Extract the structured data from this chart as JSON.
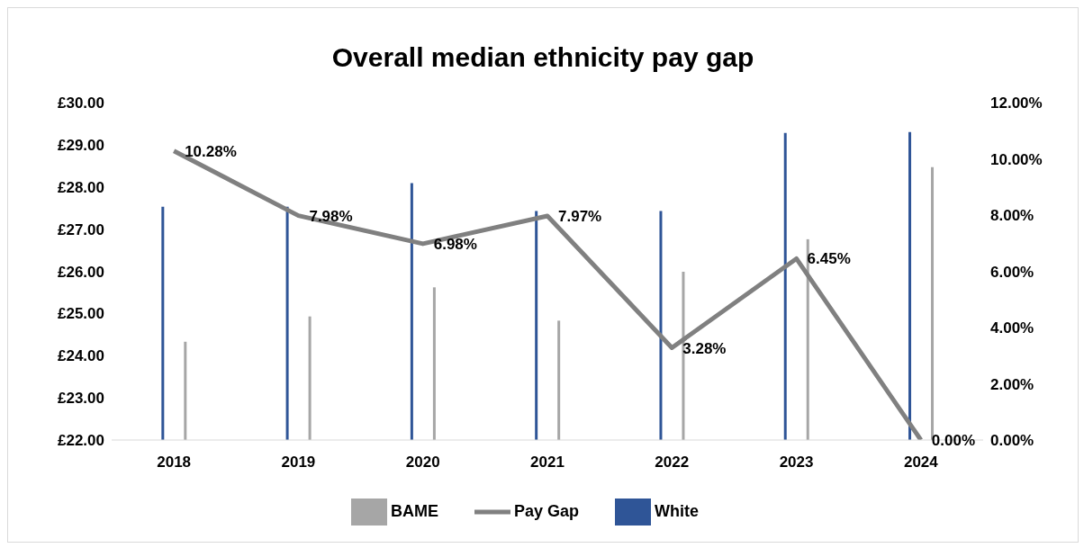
{
  "chart_data": {
    "type": "bar",
    "title": "Overall median ethnicity pay gap",
    "categories": [
      "2018",
      "2019",
      "2020",
      "2021",
      "2022",
      "2023",
      "2024"
    ],
    "series": [
      {
        "name": "White",
        "color": "#2f5597",
        "values": [
          27.53,
          27.53,
          28.09,
          27.43,
          27.43,
          29.28,
          29.3
        ]
      },
      {
        "name": "BAME",
        "color": "#a6a6a6",
        "values": [
          24.33,
          24.93,
          25.62,
          24.83,
          25.99,
          26.76,
          28.47
        ]
      },
      {
        "name": "Pay Gap",
        "type": "line",
        "axis": "y2",
        "color": "#808080",
        "values": [
          10.28,
          7.98,
          6.98,
          7.97,
          3.28,
          6.45,
          0
        ],
        "value_labels": [
          "10.28%",
          "7.98%",
          "6.98%",
          "7.97%",
          "3.28%",
          "6.45%",
          "0.00%"
        ]
      }
    ],
    "ylim": [
      22,
      30
    ],
    "yticks": [
      {
        "value": 22,
        "label": "£22.00"
      },
      {
        "value": 23,
        "label": "£23.00"
      },
      {
        "value": 24,
        "label": "£24.00"
      },
      {
        "value": 25,
        "label": "£25.00"
      },
      {
        "value": 26,
        "label": "£26.00"
      },
      {
        "value": 27,
        "label": "£27.00"
      },
      {
        "value": 28,
        "label": "£28.00"
      },
      {
        "value": 29,
        "label": "£29.00"
      },
      {
        "value": 30,
        "label": "£30.00"
      }
    ],
    "y2lim": [
      0,
      12
    ],
    "y2ticks": [
      {
        "value": 0,
        "label": "0.00%"
      },
      {
        "value": 2,
        "label": "2.00%"
      },
      {
        "value": 4,
        "label": "4.00%"
      },
      {
        "value": 6,
        "label": "6.00%"
      },
      {
        "value": 8,
        "label": "8.00%"
      },
      {
        "value": 10,
        "label": "10.00%"
      },
      {
        "value": 12,
        "label": "12.00%"
      }
    ],
    "grid": false,
    "legend": "bottom",
    "marker": "none",
    "line_style": "solid"
  }
}
